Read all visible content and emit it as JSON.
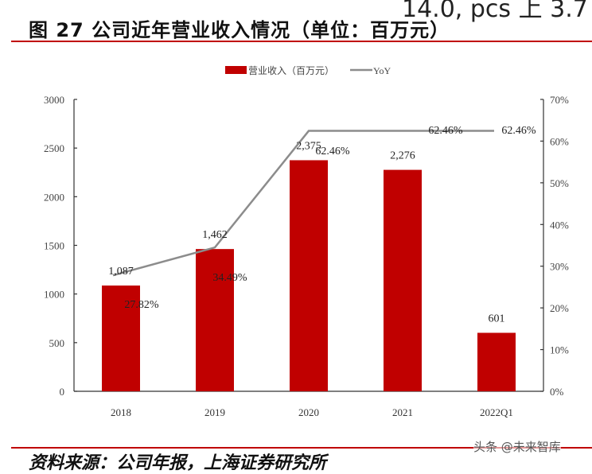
{
  "header": {
    "top_fragment": "14.0, pcs 上 3.7",
    "title": "图 27 公司近年营业收入情况（单位：百万元）"
  },
  "footer": {
    "source": "资料来源：公司年报，上海证券研究所",
    "watermark": "头条 @未来智库"
  },
  "colors": {
    "bar": "#c00000",
    "line": "#8c8c8c",
    "rule": "#c00000"
  },
  "legend": {
    "bar_label": "营业收入（百万元）",
    "line_label": "YoY"
  },
  "chart_data": {
    "type": "bar",
    "title": "公司近年营业收入情况（单位：百万元）",
    "categories": [
      "2018",
      "2019",
      "2020",
      "2021",
      "2022Q1"
    ],
    "series": [
      {
        "name": "营业收入（百万元）",
        "type": "bar",
        "axis": "left",
        "values": [
          1087,
          1462,
          2375,
          2276,
          601
        ],
        "labels": [
          "1,087",
          "1,462",
          "2,375",
          "2,276",
          "601"
        ]
      },
      {
        "name": "YoY",
        "type": "line",
        "axis": "right",
        "values": [
          27.82,
          34.49,
          62.46,
          62.46,
          62.46
        ],
        "labels": [
          "27.82%",
          "34.49%",
          "62.46%",
          "62.46%",
          "62.46%"
        ]
      }
    ],
    "left_axis": {
      "min": 0,
      "max": 3000,
      "ticks": [
        "0",
        "500",
        "1000",
        "1500",
        "2000",
        "2500",
        "3000"
      ]
    },
    "right_axis": {
      "min": 0,
      "max": 70,
      "ticks": [
        "0%",
        "10%",
        "20%",
        "30%",
        "40%",
        "50%",
        "60%",
        "70%"
      ]
    },
    "xlabel": "",
    "ylabel": "",
    "grid": false,
    "legend_position": "top"
  }
}
